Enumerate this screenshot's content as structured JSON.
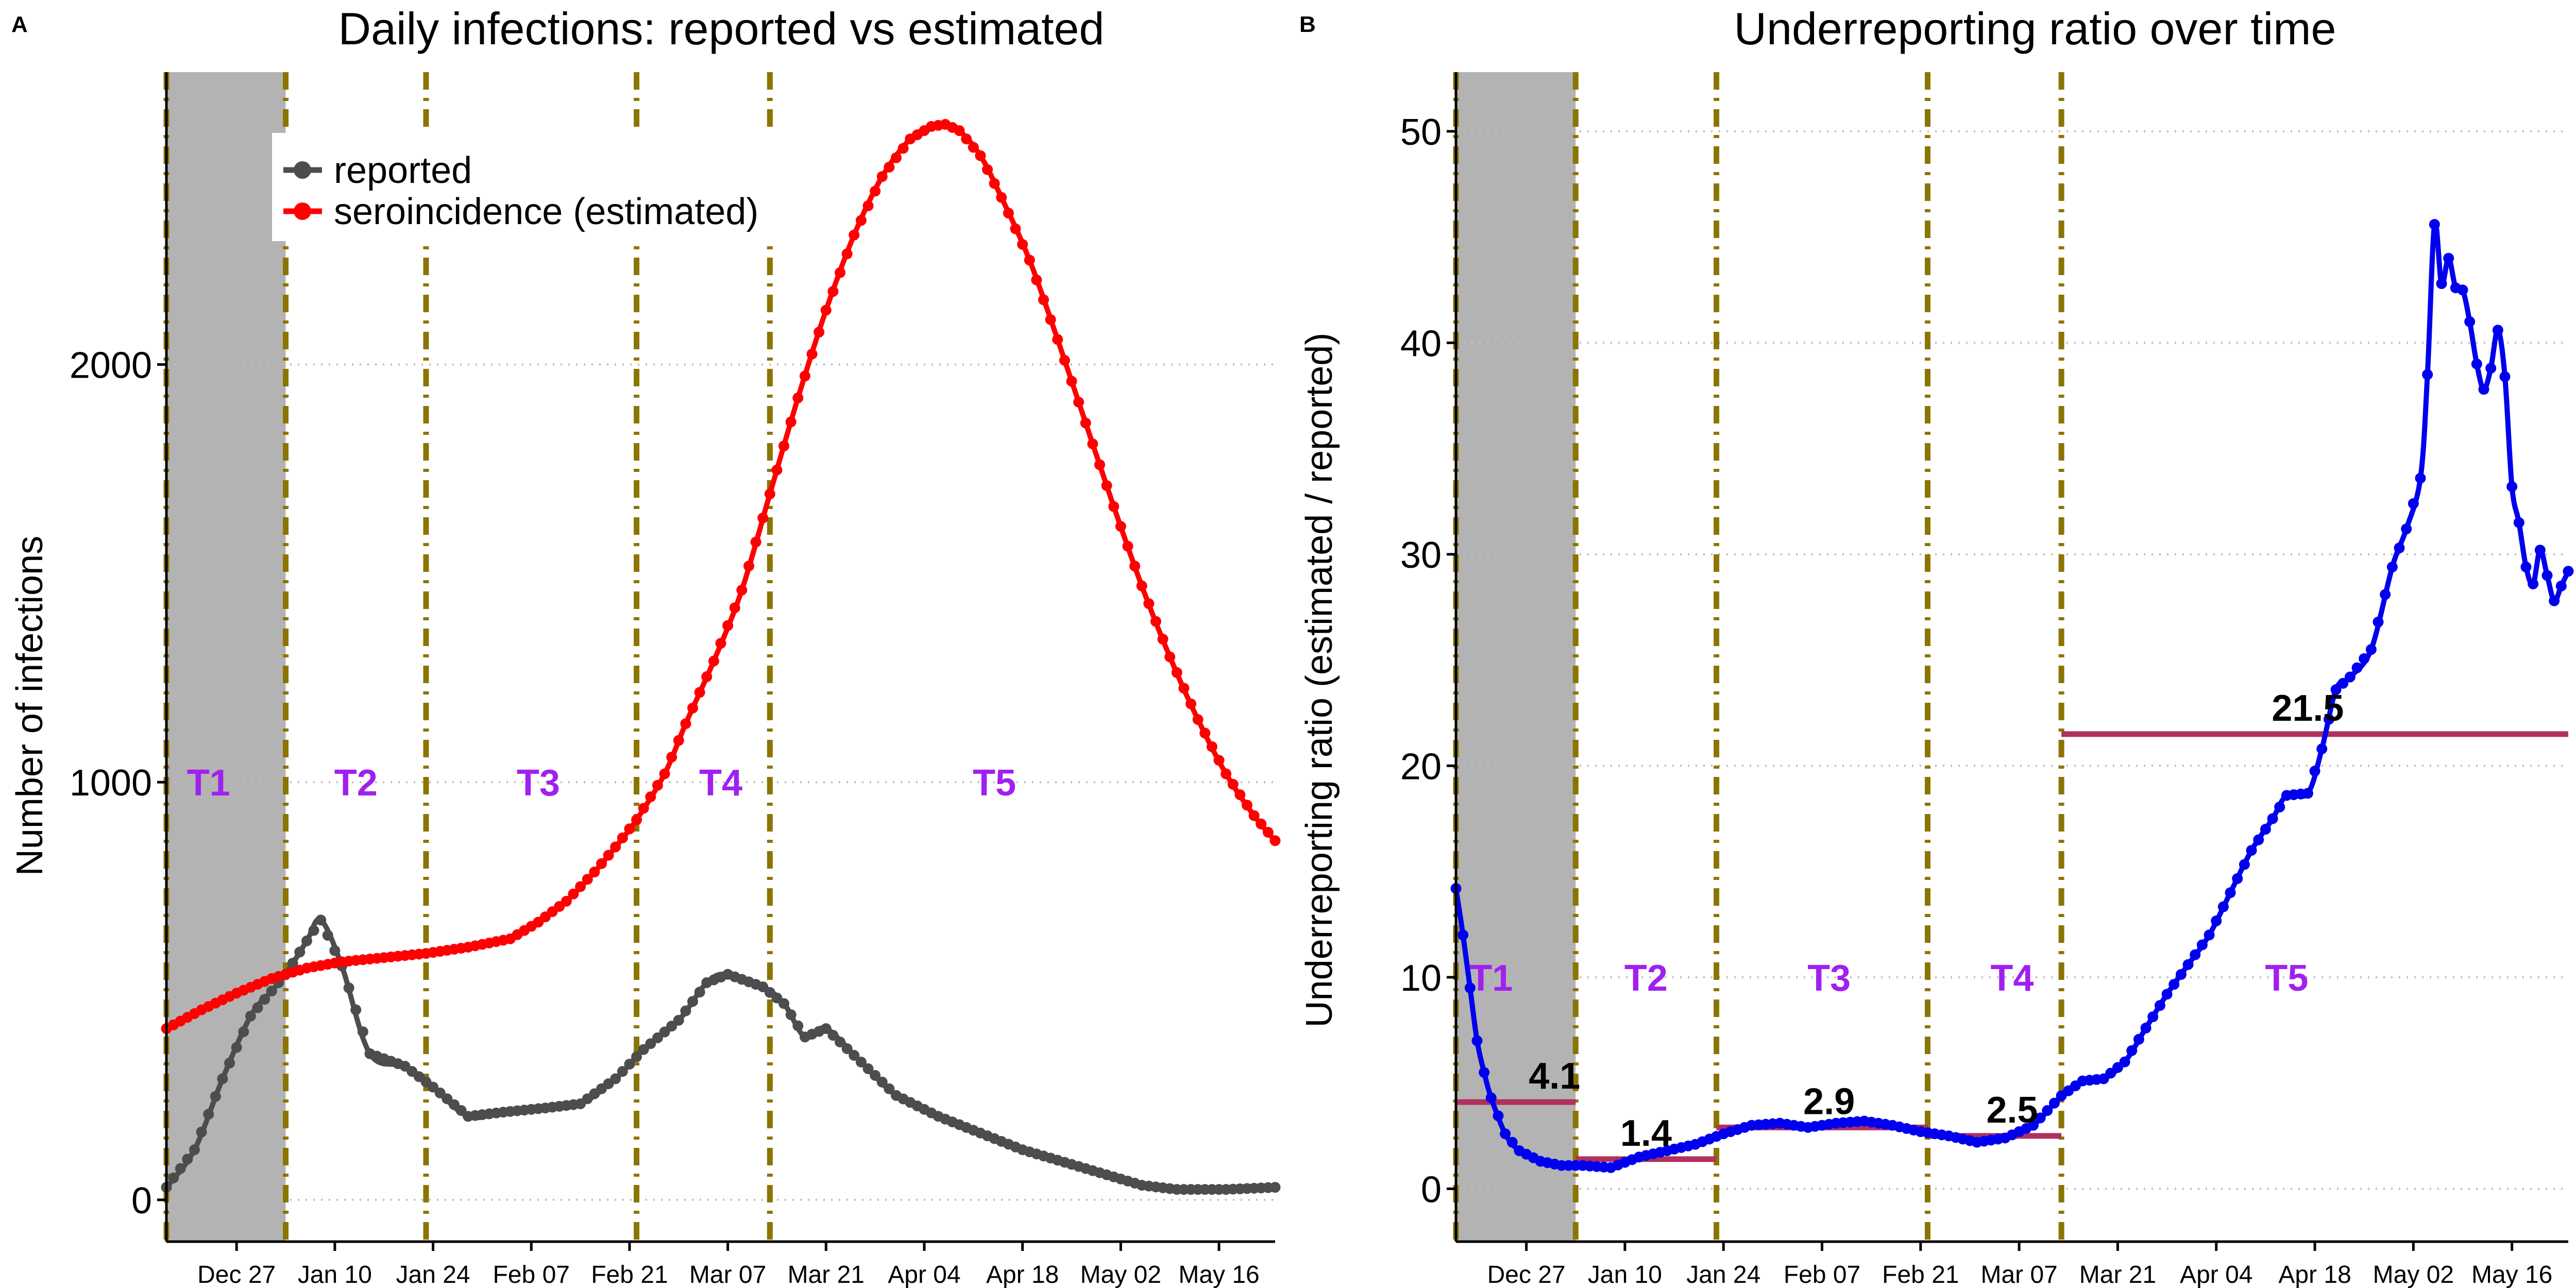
{
  "panels": {
    "a_label": "A",
    "b_label": "B"
  },
  "chart_data": [
    {
      "type": "line",
      "title": "Daily infections: reported vs estimated",
      "xlabel": "",
      "ylabel": "Number of infections",
      "x_tick_labels": [
        "Dec 27",
        "Jan 10",
        "Jan 24",
        "Feb 07",
        "Feb 21",
        "Mar 07",
        "Mar 21",
        "Apr 04",
        "Apr 18",
        "May 02",
        "May 16"
      ],
      "y_tick_labels": [
        "0",
        "1000",
        "2000"
      ],
      "y_ticks": [
        0,
        1000,
        2000
      ],
      "ylim": [
        -100,
        2700
      ],
      "x_range": [
        "Dec 17",
        "May 24"
      ],
      "grid": "horizontal dotted",
      "legend_position": "top-left",
      "shaded_period": {
        "label": "T1",
        "from": "Dec 17",
        "to": "Jan 03"
      },
      "period_lines": [
        "Dec 17",
        "Jan 03",
        "Jan 23",
        "Feb 22",
        "Mar 13"
      ],
      "period_labels": [
        {
          "text": "T1",
          "x": "Dec 23"
        },
        {
          "text": "T2",
          "x": "Jan 13"
        },
        {
          "text": "T3",
          "x": "Feb 08"
        },
        {
          "text": "T4",
          "x": "Mar 06"
        },
        {
          "text": "T5",
          "x": "Apr 14"
        }
      ],
      "series": [
        {
          "name": "reported",
          "color": "#4d4d4d",
          "x": [
            "Dec 17",
            "Dec 21",
            "Dec 25",
            "Dec 29",
            "Jan 01",
            "Jan 03",
            "Jan 06",
            "Jan 08",
            "Jan 11",
            "Jan 15",
            "Jan 20",
            "Jan 24",
            "Jan 29",
            "Feb 03",
            "Feb 09",
            "Feb 14",
            "Feb 19",
            "Feb 23",
            "Feb 28",
            "Mar 04",
            "Mar 07",
            "Mar 12",
            "Mar 15",
            "Mar 18",
            "Mar 21",
            "Mar 26",
            "Mar 31",
            "Apr 06",
            "Apr 12",
            "Apr 18",
            "Apr 24",
            "Apr 30",
            "May 05",
            "May 10",
            "May 17",
            "May 24"
          ],
          "values": [
            30,
            120,
            290,
            440,
            500,
            540,
            620,
            670,
            560,
            350,
            320,
            270,
            200,
            210,
            220,
            230,
            290,
            360,
            430,
            520,
            540,
            510,
            470,
            390,
            410,
            330,
            250,
            200,
            160,
            120,
            90,
            60,
            35,
            25,
            25,
            30
          ]
        },
        {
          "name": "seroincidence (estimated)",
          "color": "#ff0000",
          "x": [
            "Dec 17",
            "Dec 22",
            "Dec 27",
            "Jan 01",
            "Jan 06",
            "Jan 11",
            "Jan 17",
            "Jan 23",
            "Jan 29",
            "Feb 04",
            "Feb 08",
            "Feb 12",
            "Feb 16",
            "Feb 19",
            "Feb 22",
            "Feb 26",
            "Mar 01",
            "Mar 05",
            "Mar 09",
            "Mar 13",
            "Mar 17",
            "Mar 21",
            "Mar 25",
            "Mar 29",
            "Apr 02",
            "Apr 05",
            "Apr 07",
            "Apr 09",
            "Apr 12",
            "Apr 15",
            "Apr 19",
            "Apr 23",
            "Apr 27",
            "May 01",
            "May 05",
            "May 09",
            "May 13",
            "May 17",
            "May 21",
            "May 24"
          ],
          "values": [
            410,
            455,
            495,
            530,
            555,
            570,
            580,
            590,
            605,
            625,
            665,
            715,
            785,
            845,
            910,
            1020,
            1140,
            1290,
            1460,
            1690,
            1920,
            2130,
            2310,
            2450,
            2540,
            2570,
            2575,
            2560,
            2500,
            2400,
            2250,
            2060,
            1860,
            1660,
            1470,
            1300,
            1150,
            1020,
            920,
            860
          ]
        }
      ]
    },
    {
      "type": "line",
      "title": "Underreporting ratio over time",
      "xlabel": "",
      "ylabel": "Underreporting ratio (estimated / reported)",
      "x_tick_labels": [
        "Dec 27",
        "Jan 10",
        "Jan 24",
        "Feb 07",
        "Feb 21",
        "Mar 07",
        "Mar 21",
        "Apr 04",
        "Apr 18",
        "May 02",
        "May 16"
      ],
      "y_tick_labels": [
        "0",
        "10",
        "20",
        "30",
        "40",
        "50"
      ],
      "y_ticks": [
        0,
        10,
        20,
        30,
        40,
        50
      ],
      "ylim": [
        -2.5,
        52.8
      ],
      "x_range": [
        "Dec 17",
        "May 24"
      ],
      "grid": "horizontal dotted",
      "shaded_period": {
        "label": "T1",
        "from": "Dec 17",
        "to": "Jan 03"
      },
      "period_lines": [
        "Dec 17",
        "Jan 03",
        "Jan 23",
        "Feb 22",
        "Mar 13"
      ],
      "period_labels": [
        {
          "text": "T1",
          "x": "Dec 22"
        },
        {
          "text": "T2",
          "x": "Jan 13"
        },
        {
          "text": "T3",
          "x": "Feb 08"
        },
        {
          "text": "T4",
          "x": "Mar 06"
        },
        {
          "text": "T5",
          "x": "Apr 14"
        }
      ],
      "period_means": [
        {
          "from": "Dec 17",
          "to": "Jan 03",
          "value": 4.1,
          "label": "4.1",
          "label_x": "Dec 31"
        },
        {
          "from": "Jan 03",
          "to": "Jan 23",
          "value": 1.4,
          "label": "1.4",
          "label_x": "Jan 13"
        },
        {
          "from": "Jan 23",
          "to": "Feb 22",
          "value": 2.9,
          "label": "2.9",
          "label_x": "Feb 08"
        },
        {
          "from": "Feb 22",
          "to": "Mar 13",
          "value": 2.5,
          "label": "2.5",
          "label_x": "Mar 06"
        },
        {
          "from": "Mar 13",
          "to": "May 24",
          "value": 21.5,
          "label": "21.5",
          "label_x": "Apr 17"
        }
      ],
      "mean_line_color": "#b03060",
      "series": [
        {
          "name": "",
          "color": "#0000ee",
          "x": [
            "Dec 17",
            "Dec 18",
            "Dec 19",
            "Dec 20",
            "Dec 21",
            "Dec 22",
            "Dec 24",
            "Dec 26",
            "Dec 29",
            "Jan 01",
            "Jan 04",
            "Jan 08",
            "Jan 12",
            "Jan 16",
            "Jan 20",
            "Jan 24",
            "Jan 28",
            "Feb 01",
            "Feb 05",
            "Feb 09",
            "Feb 13",
            "Feb 17",
            "Feb 21",
            "Feb 25",
            "Mar 01",
            "Mar 05",
            "Mar 09",
            "Mar 13",
            "Mar 16",
            "Mar 19",
            "Mar 22",
            "Mar 25",
            "Mar 28",
            "Mar 31",
            "Apr 03",
            "Apr 06",
            "Apr 09",
            "Apr 12",
            "Apr 14",
            "Apr 17",
            "Apr 19",
            "Apr 21",
            "Apr 23",
            "Apr 26",
            "Apr 29",
            "May 01",
            "May 03",
            "May 04",
            "May 05",
            "May 06",
            "May 07",
            "May 08",
            "May 09",
            "May 10",
            "May 11",
            "May 12",
            "May 13",
            "May 14",
            "May 15",
            "May 16",
            "May 17",
            "May 18",
            "May 19",
            "May 20",
            "May 21",
            "May 22",
            "May 23",
            "May 24"
          ],
          "values": [
            14.2,
            12.0,
            9.5,
            7.0,
            5.5,
            4.3,
            2.6,
            1.8,
            1.3,
            1.1,
            1.1,
            1.0,
            1.5,
            1.8,
            2.1,
            2.6,
            3.0,
            3.1,
            2.9,
            3.1,
            3.2,
            3.0,
            2.7,
            2.5,
            2.2,
            2.4,
            3.0,
            4.4,
            5.1,
            5.2,
            6.0,
            7.6,
            9.2,
            10.6,
            12.0,
            14.0,
            16.0,
            17.5,
            18.6,
            18.7,
            20.8,
            23.6,
            24.2,
            25.5,
            29.4,
            31.2,
            33.6,
            38.5,
            45.6,
            42.8,
            44.0,
            42.6,
            42.5,
            41.0,
            39.0,
            37.8,
            38.8,
            40.6,
            38.4,
            33.2,
            31.5,
            29.4,
            28.6,
            30.2,
            29.0,
            27.8,
            28.5,
            29.2
          ]
        }
      ]
    }
  ]
}
